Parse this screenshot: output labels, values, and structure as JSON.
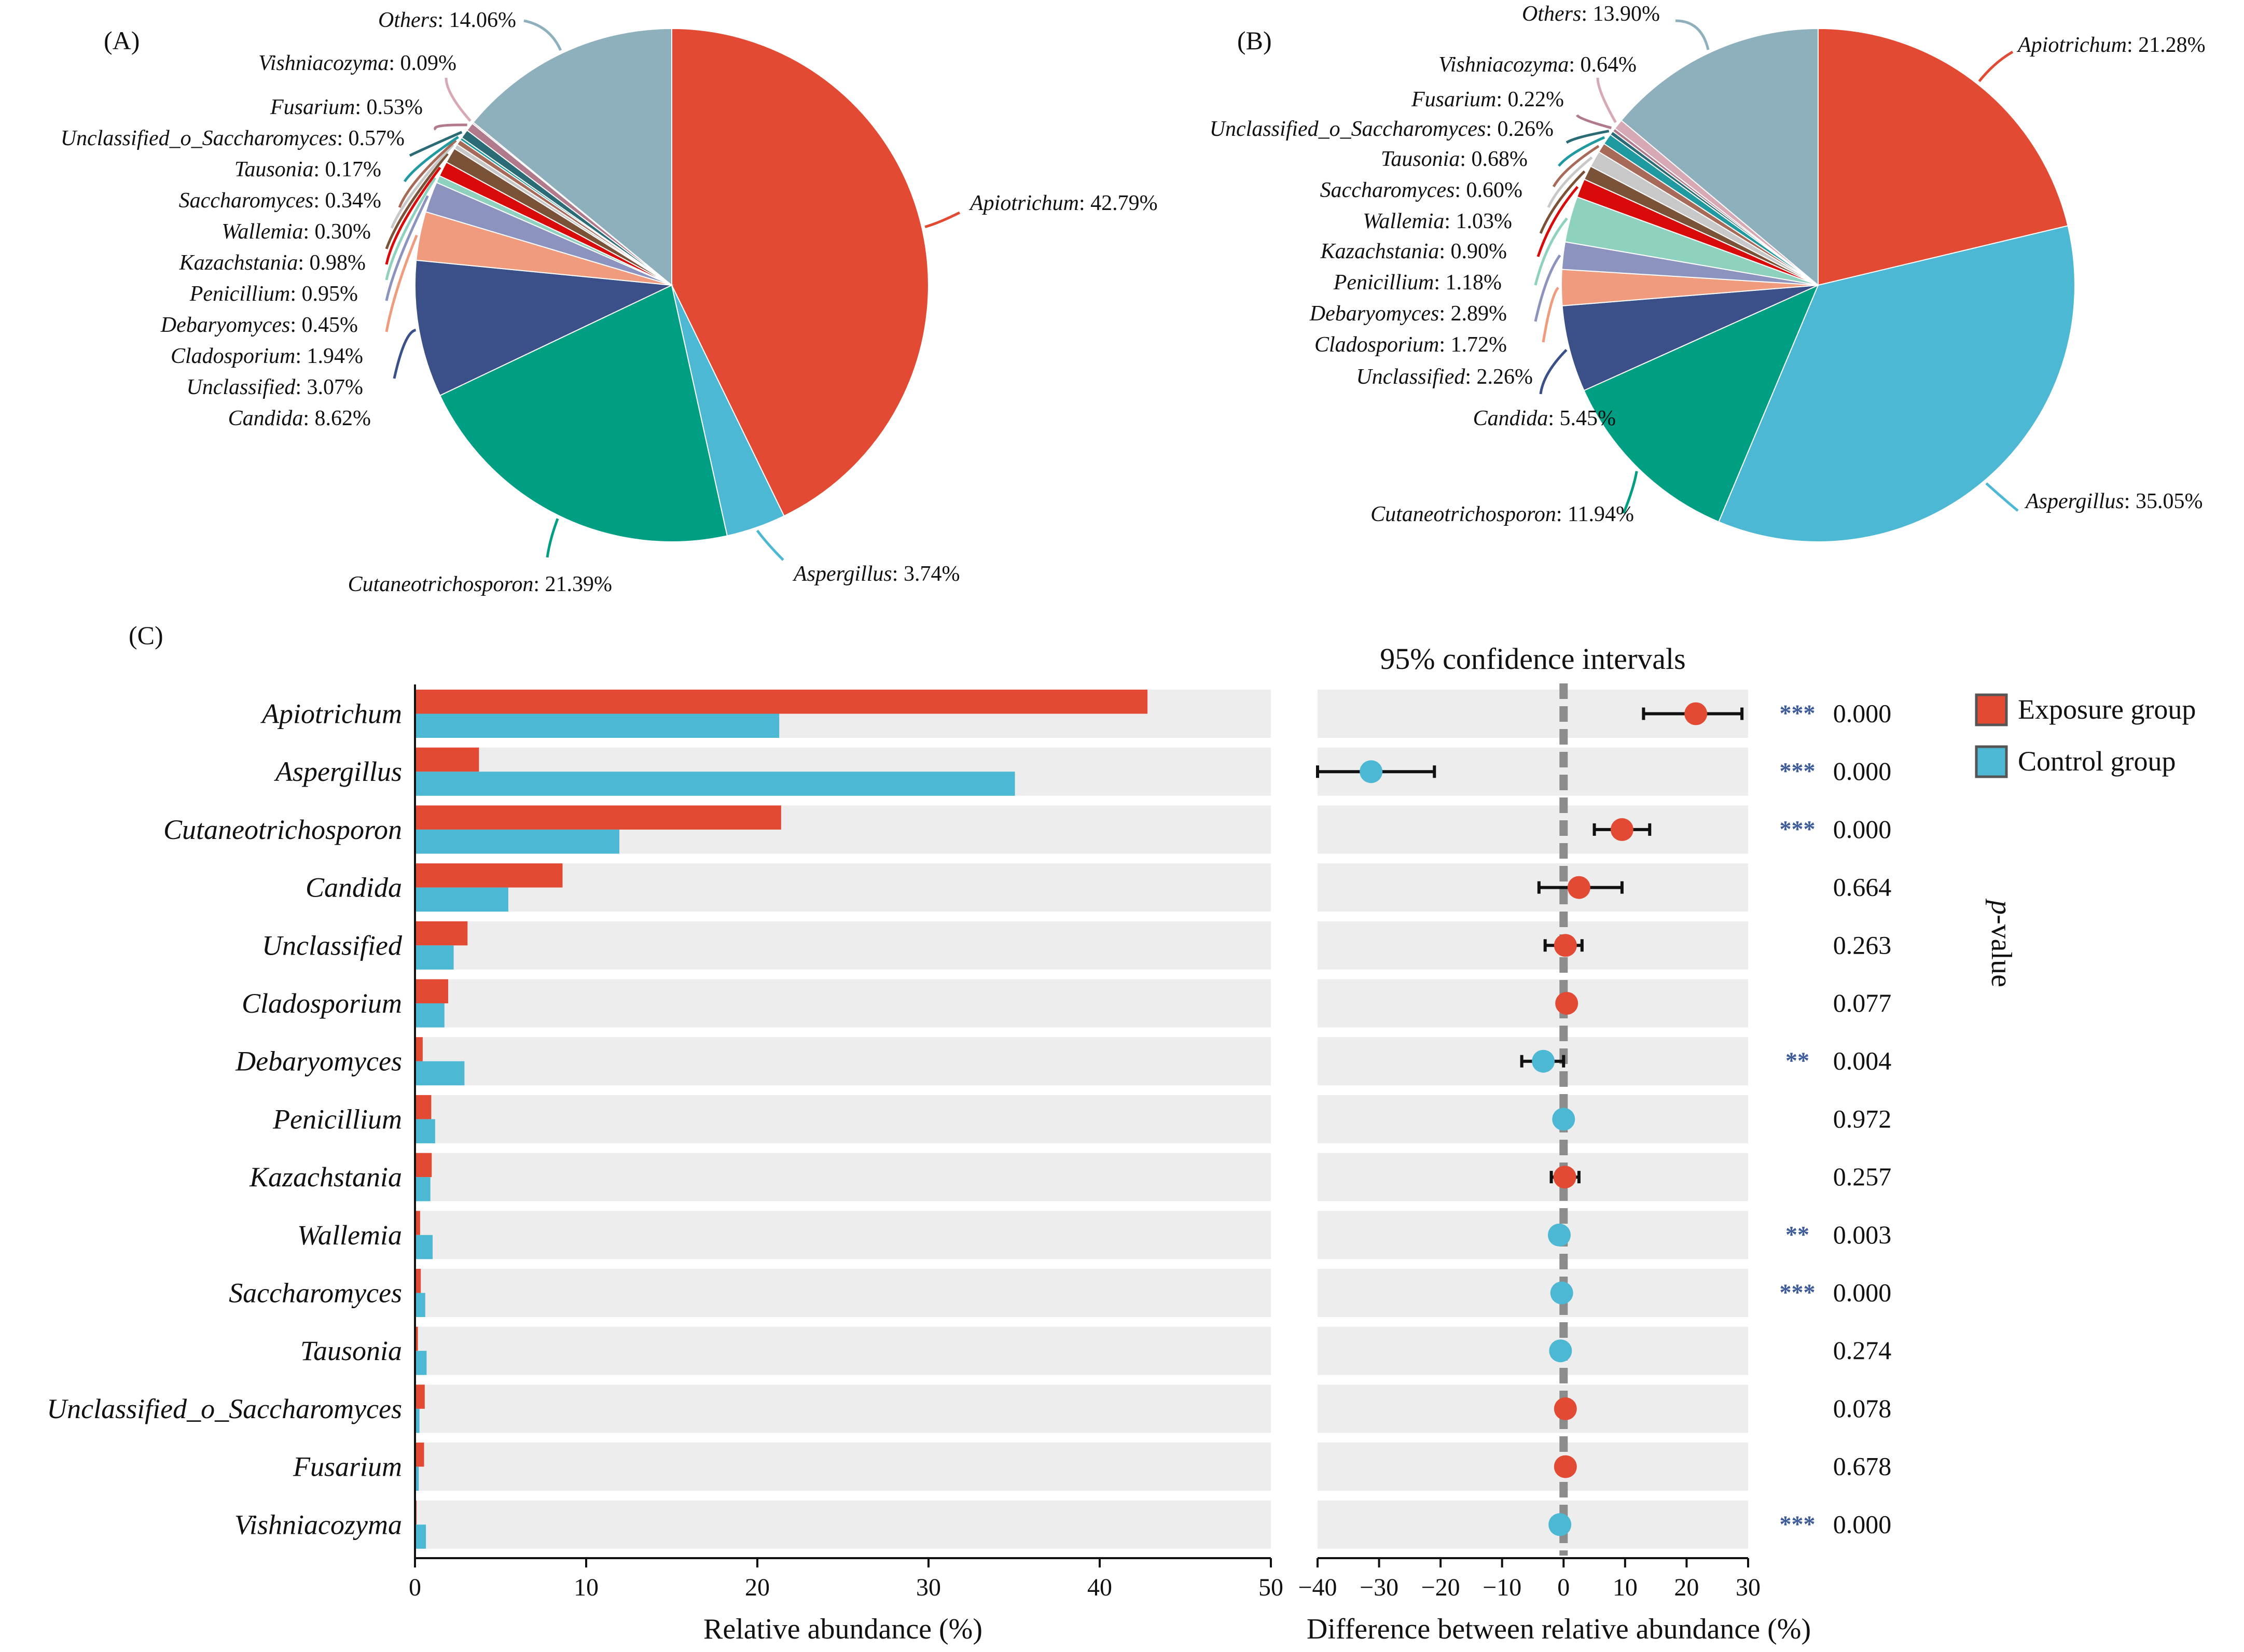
{
  "colors": {
    "exposure": "#E34A33",
    "control": "#4DB8D4",
    "row_bg": "#EDEDED",
    "zero_line": "#8C8C8C",
    "stars": "#3D5A99"
  },
  "chart_data": [
    {
      "panel": "(A)",
      "type": "pie",
      "slices": [
        {
          "label": "Apiotrichum",
          "value": 42.79,
          "value_text": "42.79%",
          "color": "#E34A33"
        },
        {
          "label": "Aspergillus",
          "value": 3.74,
          "value_text": "3.74%",
          "color": "#4DB8D4"
        },
        {
          "label": "Cutaneotrichosporon",
          "value": 21.39,
          "value_text": "21.39%",
          "color": "#009E82"
        },
        {
          "label": "Candida",
          "value": 8.62,
          "value_text": "8.62%",
          "color": "#3B5089"
        },
        {
          "label": "Unclassified",
          "value": 3.07,
          "value_text": "3.07%",
          "color": "#F09B7E"
        },
        {
          "label": "Cladosporium",
          "value": 1.94,
          "value_text": "1.94%",
          "color": "#8B93BE"
        },
        {
          "label": "Debaryomyces",
          "value": 0.45,
          "value_text": "0.45%",
          "color": "#8FD1BF"
        },
        {
          "label": "Penicillium",
          "value": 0.95,
          "value_text": "0.95%",
          "color": "#D90A0A"
        },
        {
          "label": "Kazachstania",
          "value": 0.98,
          "value_text": "0.98%",
          "color": "#7A5237"
        },
        {
          "label": "Wallemia",
          "value": 0.3,
          "value_text": "0.30%",
          "color": "#C8C8C8"
        },
        {
          "label": "Saccharomyces",
          "value": 0.34,
          "value_text": "0.34%",
          "color": "#A86A58"
        },
        {
          "label": "Tausonia",
          "value": 0.17,
          "value_text": "0.17%",
          "color": "#1E9AA0"
        },
        {
          "label": "Unclassified_o_Saccharomyces",
          "value": 0.57,
          "value_text": "0.57%",
          "color": "#2B6B76"
        },
        {
          "label": "Fusarium",
          "value": 0.53,
          "value_text": "0.53%",
          "color": "#B07A8C"
        },
        {
          "label": "Vishniacozyma",
          "value": 0.09,
          "value_text": "0.09%",
          "color": "#D7A9B4"
        },
        {
          "label": "Others",
          "value": 14.06,
          "value_text": "14.06%",
          "color": "#8EAFBC"
        }
      ]
    },
    {
      "panel": "(B)",
      "type": "pie",
      "slices": [
        {
          "label": "Apiotrichum",
          "value": 21.28,
          "value_text": "21.28%",
          "color": "#E34A33"
        },
        {
          "label": "Aspergillus",
          "value": 35.05,
          "value_text": "35.05%",
          "color": "#4DB8D4"
        },
        {
          "label": "Cutaneotrichosporon",
          "value": 11.94,
          "value_text": "11.94%",
          "color": "#009E82"
        },
        {
          "label": "Candida",
          "value": 5.45,
          "value_text": "5.45%",
          "color": "#3B5089"
        },
        {
          "label": "Unclassified",
          "value": 2.26,
          "value_text": "2.26%",
          "color": "#F09B7E"
        },
        {
          "label": "Cladosporium",
          "value": 1.72,
          "value_text": "1.72%",
          "color": "#8B93BE"
        },
        {
          "label": "Debaryomyces",
          "value": 2.89,
          "value_text": "2.89%",
          "color": "#8FD1BF"
        },
        {
          "label": "Penicillium",
          "value": 1.18,
          "value_text": "1.18%",
          "color": "#D90A0A"
        },
        {
          "label": "Kazachstania",
          "value": 0.9,
          "value_text": "0.90%",
          "color": "#7A5237"
        },
        {
          "label": "Wallemia",
          "value": 1.03,
          "value_text": "1.03%",
          "color": "#C8C8C8"
        },
        {
          "label": "Saccharomyces",
          "value": 0.6,
          "value_text": "0.60%",
          "color": "#A86A58"
        },
        {
          "label": "Tausonia",
          "value": 0.68,
          "value_text": "0.68%",
          "color": "#1E9AA0"
        },
        {
          "label": "Unclassified_o_Saccharomyces",
          "value": 0.26,
          "value_text": "0.26%",
          "color": "#2B6B76"
        },
        {
          "label": "Fusarium",
          "value": 0.22,
          "value_text": "0.22%",
          "color": "#B07A8C"
        },
        {
          "label": "Vishniacozyma",
          "value": 0.64,
          "value_text": "0.64%",
          "color": "#D7A9B4"
        },
        {
          "label": "Others",
          "value": 13.9,
          "value_text": "13.90%",
          "color": "#8EAFBC"
        }
      ]
    },
    {
      "panel": "(C)",
      "type": "bar",
      "orientation": "horizontal",
      "xlabel": "Relative abundance (%)",
      "xlim": [
        0,
        50
      ],
      "xticks": [
        0,
        10,
        20,
        30,
        40,
        50
      ],
      "legend": [
        "Exposure group",
        "Control group"
      ],
      "categories": [
        "Apiotrichum",
        "Aspergillus",
        "Cutaneotrichosporon",
        "Candida",
        "Unclassified",
        "Cladosporium",
        "Debaryomyces",
        "Penicillium",
        "Kazachstania",
        "Wallemia",
        "Saccharomyces",
        "Tausonia",
        "Unclassified_o_Saccharomyces",
        "Fusarium",
        "Vishniacozyma"
      ],
      "series": [
        {
          "name": "Exposure group",
          "values": [
            42.79,
            3.74,
            21.39,
            8.62,
            3.07,
            1.94,
            0.45,
            0.95,
            0.98,
            0.3,
            0.34,
            0.17,
            0.57,
            0.53,
            0.09
          ]
        },
        {
          "name": "Control group",
          "values": [
            21.28,
            35.05,
            11.94,
            5.45,
            2.26,
            1.72,
            2.89,
            1.18,
            0.9,
            1.03,
            0.6,
            0.68,
            0.26,
            0.22,
            0.64
          ]
        }
      ]
    },
    {
      "panel": "(C)",
      "type": "scatter",
      "title": "95% confidence intervals",
      "xlabel": "Difference between relative abundance (%)",
      "xlim": [
        -40,
        30
      ],
      "xticks": [
        -40,
        -30,
        -20,
        -10,
        0,
        10,
        20,
        30
      ],
      "xtick_labels": [
        "−40",
        "−30",
        "−20",
        "−10",
        "0",
        "10",
        "20",
        "30"
      ],
      "pvalue_label_main": "p",
      "pvalue_label_rest": "-value",
      "rows": [
        {
          "category": "Apiotrichum",
          "diff": 21.5,
          "ci": [
            13,
            29
          ],
          "group": "exposure",
          "stars": "***",
          "p": "0.000"
        },
        {
          "category": "Aspergillus",
          "diff": -31.3,
          "ci": [
            -40,
            -21
          ],
          "group": "control",
          "stars": "***",
          "p": "0.000"
        },
        {
          "category": "Cutaneotrichosporon",
          "diff": 9.5,
          "ci": [
            5,
            14
          ],
          "group": "exposure",
          "stars": "***",
          "p": "0.000"
        },
        {
          "category": "Candida",
          "diff": 2.5,
          "ci": [
            -4,
            9.5
          ],
          "group": "exposure",
          "stars": "",
          "p": "0.664"
        },
        {
          "category": "Unclassified",
          "diff": 0.3,
          "ci": [
            -3,
            3
          ],
          "group": "exposure",
          "stars": "",
          "p": "0.263"
        },
        {
          "category": "Cladosporium",
          "diff": 0.5,
          "ci": [
            0.5,
            0.5
          ],
          "group": "exposure",
          "stars": "",
          "p": "0.077"
        },
        {
          "category": "Debaryomyces",
          "diff": -3.3,
          "ci": [
            -6.8,
            0
          ],
          "group": "control",
          "stars": "**",
          "p": "0.004"
        },
        {
          "category": "Penicillium",
          "diff": 0,
          "ci": [
            0,
            0
          ],
          "group": "control",
          "stars": "",
          "p": "0.972"
        },
        {
          "category": "Kazachstania",
          "diff": 0.2,
          "ci": [
            -2,
            2.5
          ],
          "group": "exposure",
          "stars": "",
          "p": "0.257"
        },
        {
          "category": "Wallemia",
          "diff": -0.7,
          "ci": [
            -0.7,
            -0.7
          ],
          "group": "control",
          "stars": "**",
          "p": "0.003"
        },
        {
          "category": "Saccharomyces",
          "diff": -0.3,
          "ci": [
            -0.3,
            -0.3
          ],
          "group": "control",
          "stars": "***",
          "p": "0.000"
        },
        {
          "category": "Tausonia",
          "diff": -0.5,
          "ci": [
            -0.5,
            -0.5
          ],
          "group": "control",
          "stars": "",
          "p": "0.274"
        },
        {
          "category": "Unclassified_o_Saccharomyces",
          "diff": 0.3,
          "ci": [
            0.3,
            0.3
          ],
          "group": "exposure",
          "stars": "",
          "p": "0.078"
        },
        {
          "category": "Fusarium",
          "diff": 0.3,
          "ci": [
            0.3,
            0.3
          ],
          "group": "exposure",
          "stars": "",
          "p": "0.678"
        },
        {
          "category": "Vishniacozyma",
          "diff": -0.6,
          "ci": [
            -0.6,
            -0.6
          ],
          "group": "control",
          "stars": "***",
          "p": "0.000"
        }
      ]
    }
  ]
}
